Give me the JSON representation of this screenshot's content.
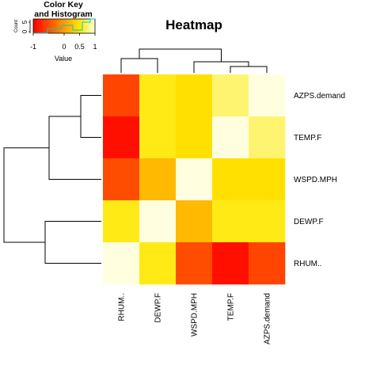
{
  "chart_data": {
    "type": "heatmap",
    "title": "Heatmap",
    "rows": [
      "AZPS.demand",
      "TEMP.F",
      "WSPD.MPH",
      "DEWP.F",
      "RHUM.."
    ],
    "columns": [
      "RHUM..",
      "DEWP.F",
      "WSPD.MPH",
      "TEMP.F",
      "AZPS.demand"
    ],
    "values": [
      [
        -0.55,
        0.55,
        0.45,
        0.75,
        1.0
      ],
      [
        -0.9,
        0.55,
        0.45,
        1.0,
        0.75
      ],
      [
        -0.5,
        0.2,
        1.0,
        0.45,
        0.45
      ],
      [
        0.55,
        1.0,
        0.2,
        0.55,
        0.55
      ],
      [
        1.0,
        0.55,
        -0.5,
        -0.9,
        -0.55
      ]
    ],
    "color_scale": {
      "min": -1,
      "max": 1,
      "low_color": "#ff0000",
      "mid_color": "#ff9a00",
      "high_color": "#ffffe0"
    },
    "color_key": {
      "title": "Color Key",
      "subtitle": "and Histogram",
      "xlabel": "Value",
      "ylabel": "Count",
      "ticks": [
        "-1",
        "0",
        "0.5",
        "1"
      ],
      "y_ticks": [
        "0",
        "5"
      ]
    },
    "row_dendrogram": true,
    "column_dendrogram": true
  }
}
